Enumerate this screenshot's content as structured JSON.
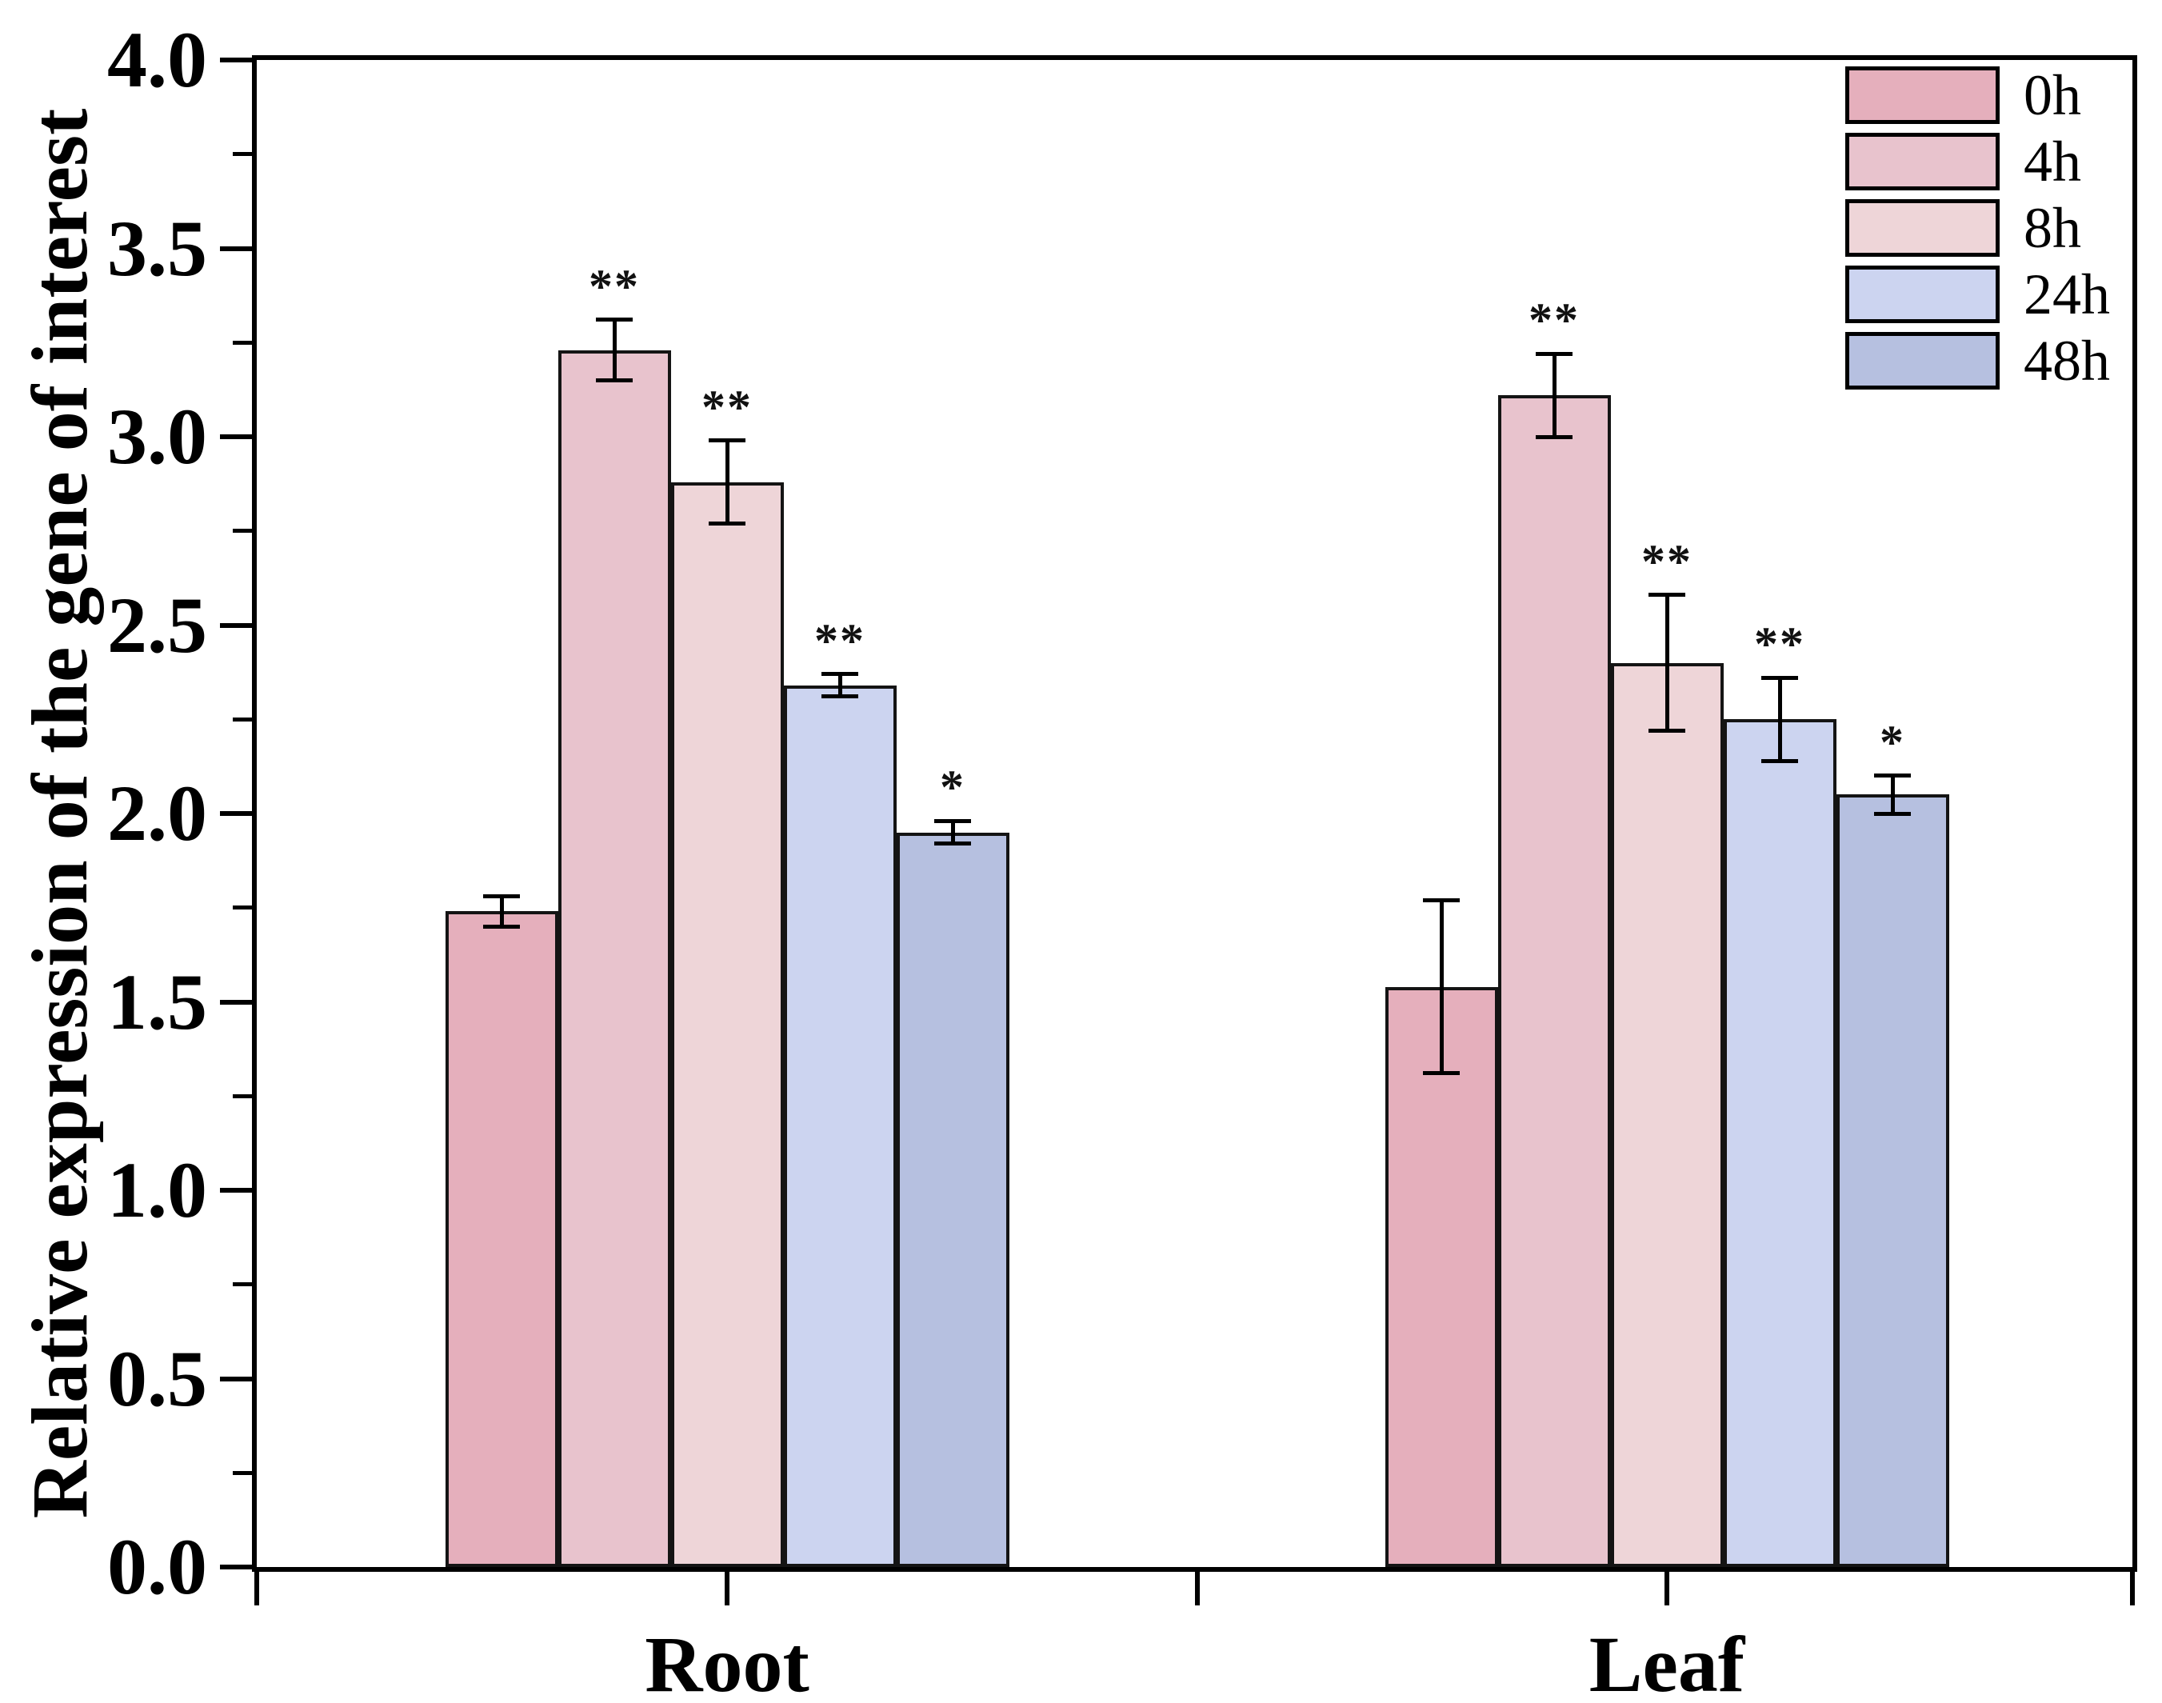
{
  "figure": {
    "background": "#ffffff",
    "axis_color": "#000000"
  },
  "chart_data": {
    "type": "bar",
    "title": "",
    "ylabel": "Relative expression of the gene of interest",
    "xlabel": "",
    "categories": [
      "Root",
      "Leaf"
    ],
    "series": [
      {
        "name": "0h",
        "color": "#e5afbc",
        "values": [
          1.74,
          1.54
        ],
        "errors": [
          0.04,
          0.23
        ],
        "sig": [
          "",
          ""
        ]
      },
      {
        "name": "4h",
        "color": "#e8c3cd",
        "values": [
          3.23,
          3.11
        ],
        "errors": [
          0.08,
          0.11
        ],
        "sig": [
          "**",
          "**"
        ]
      },
      {
        "name": "8h",
        "color": "#eed5d8",
        "values": [
          2.88,
          2.4
        ],
        "errors": [
          0.11,
          0.18
        ],
        "sig": [
          "**",
          "**"
        ]
      },
      {
        "name": "24h",
        "color": "#ccd4f0",
        "values": [
          2.34,
          2.25
        ],
        "errors": [
          0.03,
          0.11
        ],
        "sig": [
          "**",
          "**"
        ]
      },
      {
        "name": "48h",
        "color": "#b6c0e0",
        "values": [
          1.95,
          2.05
        ],
        "errors": [
          0.03,
          0.05
        ],
        "sig": [
          "*",
          "*"
        ]
      }
    ],
    "ylim": [
      0,
      4.0
    ],
    "ytick_step": 0.5,
    "yminor_step": 0.25,
    "ytick_format_decimals": 1,
    "grid": false,
    "legend_position": "top-right-inside",
    "bar_border_color": "#141414",
    "error_bar_color": "#000000"
  }
}
